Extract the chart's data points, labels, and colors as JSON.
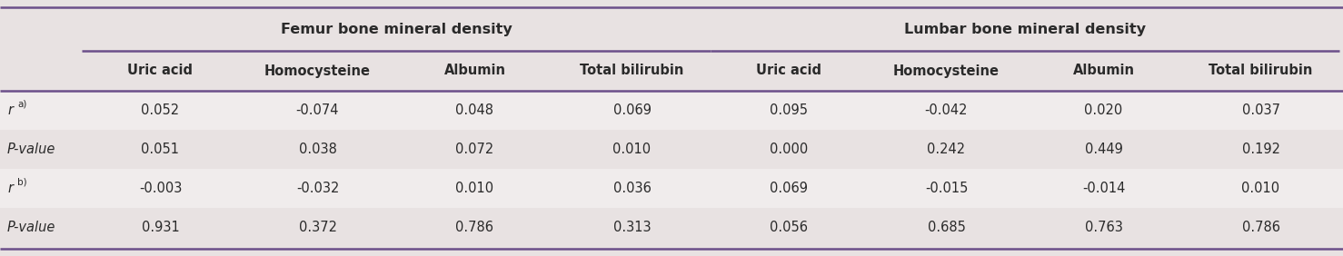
{
  "background_color": "#e8e2e2",
  "row_bg_light": "#f0ecec",
  "row_bg_dark": "#e8e2e2",
  "text_color": "#2a2a2a",
  "purple_line_color": "#6b4f8a",
  "group_headers": [
    "Femur bone mineral density",
    "Lumbar bone mineral density"
  ],
  "col_headers": [
    "Uric acid",
    "Homocysteine",
    "Albumin",
    "Total bilirubin",
    "Uric acid",
    "Homocysteine",
    "Albumin",
    "Total bilirubin"
  ],
  "data": [
    [
      "0.052",
      "-0.074",
      "0.048",
      "0.069",
      "0.095",
      "-0.042",
      "0.020",
      "0.037"
    ],
    [
      "0.051",
      "0.038",
      "0.072",
      "0.010",
      "0.000",
      "0.242",
      "0.449",
      "0.192"
    ],
    [
      "-0.003",
      "-0.032",
      "0.010",
      "0.036",
      "0.069",
      "-0.015",
      "-0.014",
      "0.010"
    ],
    [
      "0.931",
      "0.372",
      "0.786",
      "0.313",
      "0.056",
      "0.685",
      "0.763",
      "0.786"
    ]
  ],
  "font_size_data": 10.5,
  "font_size_header": 10.5,
  "font_size_group": 11.5
}
